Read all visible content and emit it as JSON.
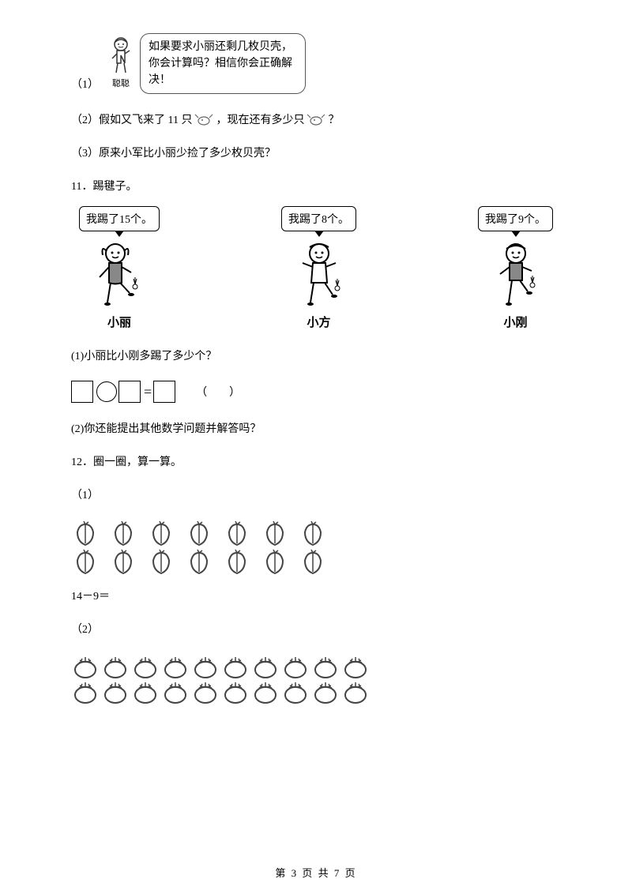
{
  "speech": {
    "label": "（1）",
    "kid_name": "聪聪",
    "bubble_text": "如果要求小丽还剩几枚贝壳，你会计算吗？相信你会正确解决！"
  },
  "q2": {
    "prefix": "（2）假如又飞来了 11 只",
    "middle": "，现在还有多少只",
    "suffix": "？"
  },
  "q3": "（3）原来小军比小丽少捡了多少枚贝壳？",
  "q11_title": "11．踢毽子。",
  "kicking": {
    "items": [
      {
        "bubble": "我踢了15个。",
        "name": "小丽"
      },
      {
        "bubble": "我踢了8个。",
        "name": "小方"
      },
      {
        "bubble": "我踢了9个。",
        "name": "小刚"
      }
    ]
  },
  "q11_1": "(1)小丽比小刚多踢了多少个？",
  "q11_paren": "（　　）",
  "q11_2": "(2)你还能提出其他数学问题并解答吗？",
  "q12_title": "12．圈一圈，算一算。",
  "q12_1": "（1）",
  "q12_eq": "14－9＝",
  "q12_2": "（2）",
  "peach_rows": [
    7,
    7
  ],
  "tomato_rows": [
    10,
    10
  ],
  "footer": "第 3 页 共 7 页",
  "colors": {
    "text": "#000000",
    "bg": "#ffffff",
    "border": "#000000"
  }
}
